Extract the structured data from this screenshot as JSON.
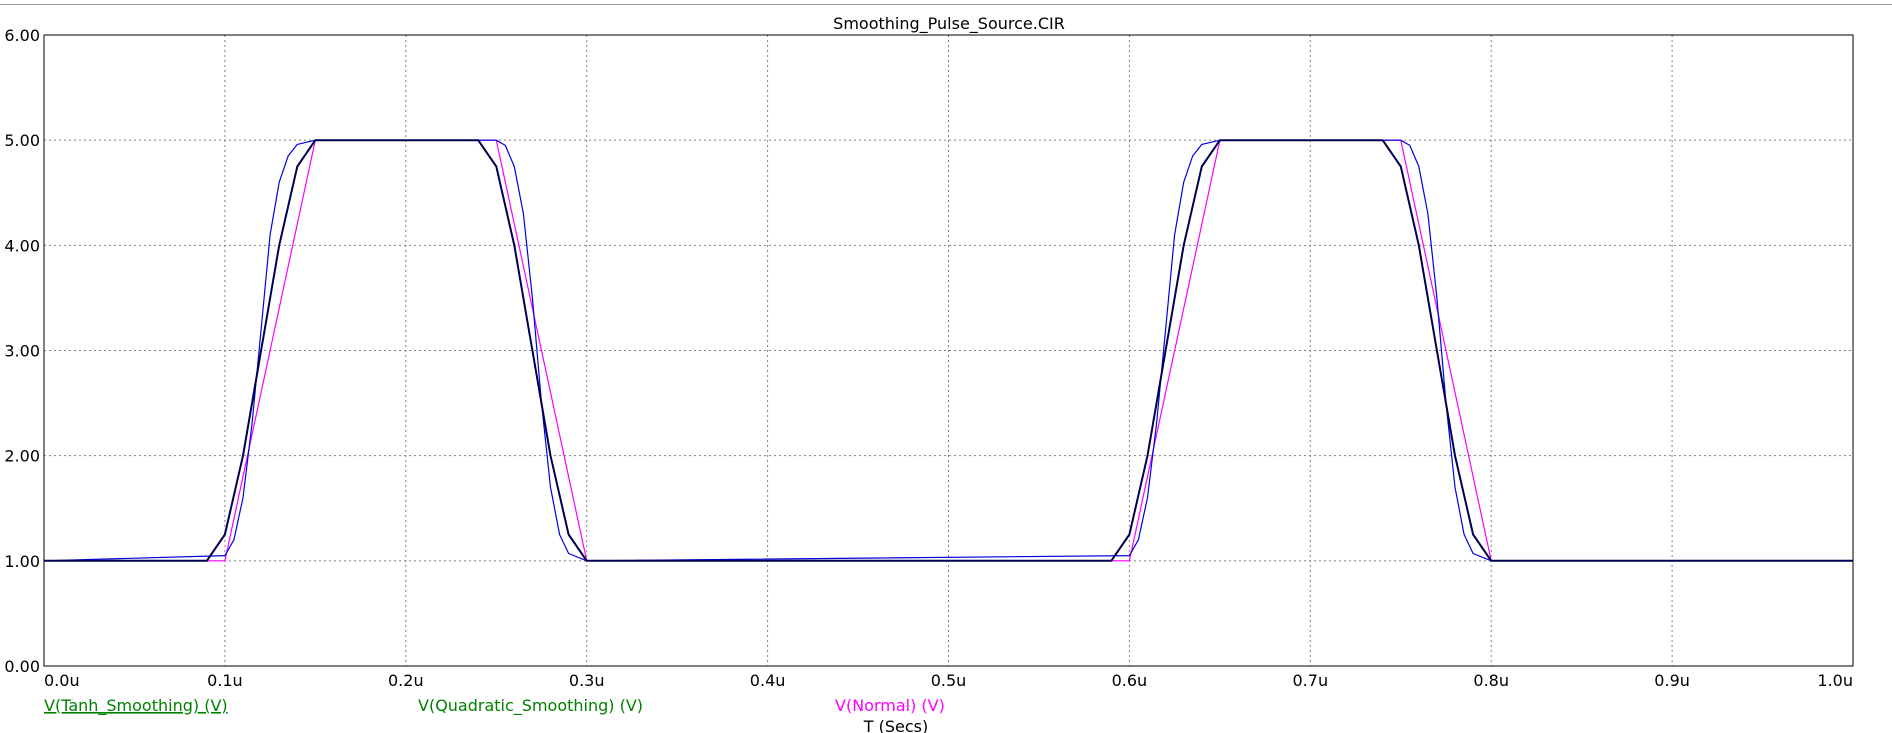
{
  "chart_data": {
    "type": "line",
    "title": "Smoothing_Pulse_Source.CIR",
    "xlabel": "T (Secs)",
    "ylabel": "",
    "xlim": [
      0,
      1.0
    ],
    "ylim": [
      0,
      6
    ],
    "x_ticks": [
      "0.0u",
      "0.1u",
      "0.2u",
      "0.3u",
      "0.4u",
      "0.5u",
      "0.6u",
      "0.7u",
      "0.8u",
      "0.9u",
      "1.0u"
    ],
    "y_ticks": [
      "0.00",
      "1.00",
      "2.00",
      "3.00",
      "4.00",
      "5.00",
      "6.00"
    ],
    "grid": true,
    "legend_position": "bottom",
    "colors": {
      "tanh": "#0000e0",
      "quadratic": "#000050",
      "normal": "#ff00ff",
      "legend_tanh": "#008000",
      "legend_quadratic": "#008000",
      "legend_normal": "#ff00ff"
    },
    "series": [
      {
        "name": "V(Tanh_Smoothing) (V)",
        "x": [
          0.0,
          0.1,
          0.105,
          0.11,
          0.115,
          0.12,
          0.125,
          0.13,
          0.135,
          0.14,
          0.15,
          0.25,
          0.255,
          0.26,
          0.265,
          0.27,
          0.275,
          0.28,
          0.285,
          0.29,
          0.3,
          0.6,
          0.605,
          0.61,
          0.615,
          0.62,
          0.625,
          0.63,
          0.635,
          0.64,
          0.65,
          0.75,
          0.755,
          0.76,
          0.765,
          0.77,
          0.775,
          0.78,
          0.785,
          0.79,
          0.8,
          1.0
        ],
        "y": [
          1.0,
          1.05,
          1.2,
          1.6,
          2.3,
          3.2,
          4.1,
          4.6,
          4.85,
          4.96,
          5.0,
          5.0,
          4.95,
          4.75,
          4.3,
          3.5,
          2.5,
          1.7,
          1.25,
          1.07,
          1.0,
          1.05,
          1.2,
          1.6,
          2.3,
          3.2,
          4.1,
          4.6,
          4.85,
          4.96,
          5.0,
          5.0,
          4.95,
          4.75,
          4.3,
          3.5,
          2.5,
          1.7,
          1.25,
          1.07,
          1.0,
          1.0
        ]
      },
      {
        "name": "V(Quadratic_Smoothing) (V)",
        "x": [
          0.0,
          0.09,
          0.1,
          0.11,
          0.12,
          0.13,
          0.14,
          0.15,
          0.16,
          0.24,
          0.25,
          0.26,
          0.27,
          0.28,
          0.29,
          0.3,
          0.31,
          0.59,
          0.6,
          0.61,
          0.62,
          0.63,
          0.64,
          0.65,
          0.66,
          0.74,
          0.75,
          0.76,
          0.77,
          0.78,
          0.79,
          0.8,
          0.81,
          1.0
        ],
        "y": [
          1.0,
          1.0,
          1.25,
          2.0,
          3.0,
          4.0,
          4.75,
          5.0,
          5.0,
          5.0,
          4.75,
          4.0,
          3.0,
          2.0,
          1.25,
          1.0,
          1.0,
          1.0,
          1.25,
          2.0,
          3.0,
          4.0,
          4.75,
          5.0,
          5.0,
          5.0,
          4.75,
          4.0,
          3.0,
          2.0,
          1.25,
          1.0,
          1.0,
          1.0
        ]
      },
      {
        "name": "V(Normal) (V)",
        "x": [
          0.0,
          0.1,
          0.15,
          0.25,
          0.3,
          0.6,
          0.65,
          0.75,
          0.8,
          1.0
        ],
        "y": [
          1.0,
          1.0,
          5.0,
          5.0,
          1.0,
          1.0,
          5.0,
          5.0,
          1.0,
          1.0
        ]
      }
    ]
  }
}
